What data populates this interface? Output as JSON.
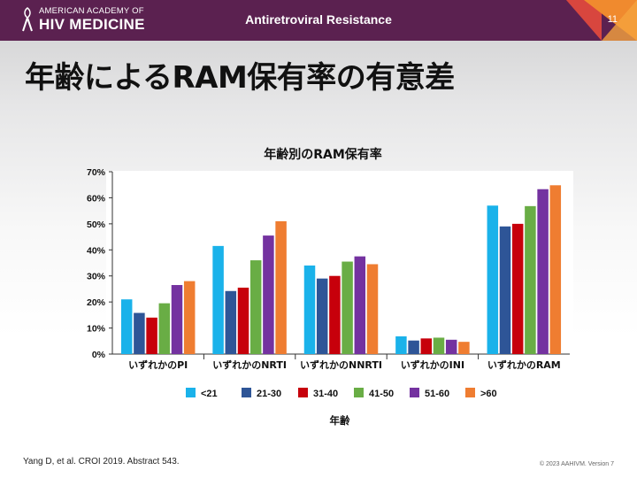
{
  "header": {
    "org_line1": "AMERICAN ACADEMY OF",
    "org_line2": "HIV MEDICINE",
    "title": "Antiretroviral Resistance",
    "slide_number": "11"
  },
  "slide": {
    "title": "年齢によるRAM保有率の有意差"
  },
  "footer": {
    "citation": "Yang D, et al. CROI 2019. Abstract 543.",
    "copyright": "© 2023 AAHIVM. Version 7"
  },
  "chart_data": {
    "type": "bar",
    "title": "年齢別のRAM保有率",
    "xlabel": "年齢",
    "ylabel": "",
    "ylim": [
      0,
      70
    ],
    "yticks": [
      "0%",
      "10%",
      "20%",
      "30%",
      "40%",
      "50%",
      "60%",
      "70%"
    ],
    "grid": false,
    "legend_position": "bottom",
    "categories": [
      "いずれかのPI",
      "いずれかのNRTI",
      "いずれかのNNRTI",
      "いずれかのINI",
      "いずれかのRAM"
    ],
    "series": [
      {
        "name": "<21",
        "color": "#1ab2ea",
        "values": [
          21,
          41.5,
          34,
          6.8,
          57
        ]
      },
      {
        "name": "21-30",
        "color": "#2e5597",
        "values": [
          15.8,
          24.2,
          29,
          5.2,
          49
        ]
      },
      {
        "name": "31-40",
        "color": "#c7000b",
        "values": [
          14,
          25.5,
          30,
          6,
          50
        ]
      },
      {
        "name": "41-50",
        "color": "#69ad45",
        "values": [
          19.5,
          36,
          35.5,
          6.3,
          56.8
        ]
      },
      {
        "name": "51-60",
        "color": "#7432a0",
        "values": [
          26.5,
          45.5,
          37.5,
          5.5,
          63.3
        ]
      },
      {
        "name": ">60",
        "color": "#ef7d31",
        "values": [
          28,
          51,
          34.5,
          4.7,
          64.8
        ]
      }
    ]
  }
}
